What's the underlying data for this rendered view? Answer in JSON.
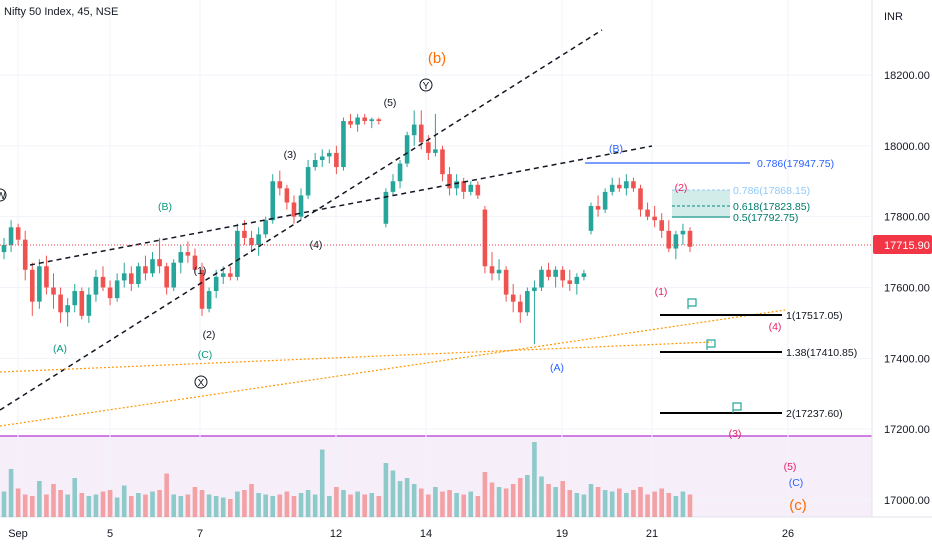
{
  "header": {
    "title": "Nifty 50 Index, 45, NSE",
    "currency": "INR"
  },
  "colors": {
    "up": "#26a69a",
    "down": "#ef5350",
    "vol_up": "#26a69a80",
    "vol_down": "#ef535080",
    "last_price_bg": "#f23645",
    "fib_blue": "#2962ff",
    "orange": "#ff6d00",
    "purple": "#9c27b0",
    "red_label": "#e91e63",
    "green_label": "#089981",
    "blue_label": "#2962ff"
  },
  "price_axis": {
    "ticks": [
      "18200.00",
      "18000.00",
      "17800.00",
      "17600.00",
      "17400.00",
      "17200.00",
      "17000.00"
    ],
    "last_price": "17715.90"
  },
  "time_axis": {
    "ticks": [
      "Sep",
      "5",
      "7",
      "12",
      "14",
      "19",
      "21",
      "26"
    ]
  },
  "fib_labels": {
    "b786": "0.786(17947.75)",
    "r786": "0.786(17868.15)",
    "r618": "0.618(17823.85)",
    "r5": "0.5(17792.75)",
    "t1": "1(17517.05)",
    "t138": "1.38(17410.85)",
    "t2": "2(17237.60)"
  },
  "wave_labels": {
    "b_big": "(b)",
    "c_big": "(c)",
    "y": "Y",
    "x": "X",
    "w5_top": "(5)",
    "w3": "(3)",
    "w4": "(4)",
    "w1": "(1)",
    "w2": "(2)",
    "wB": "(B)",
    "wA": "(A)",
    "wC": "(C)",
    "fB": "(B)",
    "fA": "(A)",
    "r2": "(2)",
    "r1": "(1)",
    "r3": "(3)",
    "r4": "(4)",
    "r5": "(5)",
    "rC": "(C)",
    "left_w": "W"
  },
  "chart_data": {
    "type": "candlestick",
    "title": "Nifty 50 Index, 45, NSE",
    "ylabel": "INR",
    "ylim": [
      16960,
      18250
    ],
    "x_tick_labels": [
      "Sep",
      "5",
      "7",
      "12",
      "14",
      "19",
      "21",
      "26"
    ],
    "last_price": 17715.9,
    "candles": [
      [
        17700,
        17740,
        17680,
        17720
      ],
      [
        17720,
        17790,
        17700,
        17770
      ],
      [
        17770,
        17780,
        17720,
        17735
      ],
      [
        17735,
        17760,
        17620,
        17650
      ],
      [
        17650,
        17670,
        17520,
        17560
      ],
      [
        17560,
        17680,
        17540,
        17660
      ],
      [
        17660,
        17690,
        17580,
        17600
      ],
      [
        17600,
        17640,
        17540,
        17580
      ],
      [
        17580,
        17600,
        17500,
        17530
      ],
      [
        17530,
        17570,
        17490,
        17550
      ],
      [
        17550,
        17610,
        17530,
        17590
      ],
      [
        17590,
        17600,
        17510,
        17520
      ],
      [
        17520,
        17600,
        17500,
        17580
      ],
      [
        17580,
        17650,
        17560,
        17630
      ],
      [
        17630,
        17660,
        17590,
        17600
      ],
      [
        17600,
        17620,
        17550,
        17570
      ],
      [
        17570,
        17640,
        17560,
        17620
      ],
      [
        17620,
        17670,
        17600,
        17640
      ],
      [
        17640,
        17660,
        17590,
        17610
      ],
      [
        17610,
        17670,
        17600,
        17660
      ],
      [
        17660,
        17690,
        17620,
        17640
      ],
      [
        17640,
        17700,
        17630,
        17680
      ],
      [
        17680,
        17740,
        17640,
        17660
      ],
      [
        17660,
        17670,
        17580,
        17600
      ],
      [
        17600,
        17680,
        17590,
        17670
      ],
      [
        17670,
        17720,
        17640,
        17700
      ],
      [
        17700,
        17730,
        17670,
        17690
      ],
      [
        17690,
        17710,
        17640,
        17650
      ],
      [
        17650,
        17670,
        17520,
        17540
      ],
      [
        17540,
        17600,
        17530,
        17590
      ],
      [
        17590,
        17650,
        17570,
        17630
      ],
      [
        17630,
        17660,
        17610,
        17640
      ],
      [
        17640,
        17660,
        17620,
        17630
      ],
      [
        17630,
        17780,
        17620,
        17760
      ],
      [
        17760,
        17790,
        17720,
        17740
      ],
      [
        17740,
        17760,
        17700,
        17720
      ],
      [
        17720,
        17770,
        17690,
        17750
      ],
      [
        17750,
        17800,
        17740,
        17790
      ],
      [
        17790,
        17920,
        17780,
        17900
      ],
      [
        17900,
        17930,
        17860,
        17880
      ],
      [
        17880,
        17890,
        17820,
        17840
      ],
      [
        17840,
        17860,
        17780,
        17800
      ],
      [
        17800,
        17880,
        17790,
        17860
      ],
      [
        17860,
        17960,
        17850,
        17940
      ],
      [
        17940,
        17980,
        17930,
        17960
      ],
      [
        17960,
        17990,
        17940,
        17970
      ],
      [
        17970,
        17990,
        17950,
        17980
      ],
      [
        17980,
        18000,
        17920,
        17940
      ],
      [
        17940,
        18080,
        17930,
        18070
      ],
      [
        18070,
        18090,
        18050,
        18060
      ],
      [
        18060,
        18090,
        18040,
        18080
      ],
      [
        18080,
        18090,
        18060,
        18070
      ],
      [
        18070,
        18080,
        18050,
        18075
      ],
      [
        18075,
        18080,
        18060,
        18070
      ],
      [
        17780,
        17880,
        17770,
        17870
      ],
      [
        17870,
        17920,
        17860,
        17900
      ],
      [
        17900,
        17960,
        17880,
        17950
      ],
      [
        17950,
        18040,
        17940,
        18030
      ],
      [
        18030,
        18100,
        18000,
        18060
      ],
      [
        18060,
        18100,
        17990,
        18010
      ],
      [
        18010,
        18030,
        17960,
        17980
      ],
      [
        17980,
        18090,
        17970,
        17990
      ],
      [
        17990,
        18000,
        17900,
        17920
      ],
      [
        17920,
        17940,
        17860,
        17880
      ],
      [
        17880,
        17920,
        17860,
        17900
      ],
      [
        17900,
        17910,
        17850,
        17870
      ],
      [
        17870,
        17900,
        17860,
        17890
      ],
      [
        17890,
        17900,
        17850,
        17860
      ],
      [
        17820,
        17830,
        17640,
        17660
      ],
      [
        17660,
        17700,
        17620,
        17640
      ],
      [
        17640,
        17680,
        17620,
        17650
      ],
      [
        17650,
        17660,
        17560,
        17580
      ],
      [
        17580,
        17610,
        17530,
        17560
      ],
      [
        17560,
        17580,
        17500,
        17530
      ],
      [
        17530,
        17600,
        17520,
        17590
      ],
      [
        17590,
        17620,
        17440,
        17600
      ],
      [
        17600,
        17660,
        17590,
        17650
      ],
      [
        17650,
        17670,
        17620,
        17630
      ],
      [
        17630,
        17660,
        17600,
        17650
      ],
      [
        17650,
        17660,
        17600,
        17620
      ],
      [
        17620,
        17650,
        17590,
        17610
      ],
      [
        17610,
        17640,
        17580,
        17630
      ],
      [
        17630,
        17650,
        17620,
        17640
      ],
      [
        17760,
        17840,
        17750,
        17830
      ],
      [
        17830,
        17860,
        17800,
        17820
      ],
      [
        17820,
        17880,
        17810,
        17870
      ],
      [
        17870,
        17910,
        17860,
        17890
      ],
      [
        17890,
        17910,
        17870,
        17880
      ],
      [
        17880,
        17920,
        17860,
        17900
      ],
      [
        17900,
        17910,
        17870,
        17880
      ],
      [
        17880,
        17890,
        17800,
        17820
      ],
      [
        17820,
        17840,
        17790,
        17800
      ],
      [
        17800,
        17830,
        17770,
        17790
      ],
      [
        17790,
        17810,
        17740,
        17760
      ],
      [
        17760,
        17790,
        17700,
        17710
      ],
      [
        17710,
        17760,
        17680,
        17750
      ],
      [
        17750,
        17780,
        17720,
        17760
      ],
      [
        17760,
        17770,
        17700,
        17715
      ]
    ],
    "volume": [
      34,
      64,
      38,
      30,
      28,
      48,
      30,
      44,
      36,
      30,
      52,
      32,
      28,
      30,
      34,
      36,
      26,
      42,
      28,
      32,
      30,
      34,
      36,
      58,
      30,
      28,
      30,
      40,
      36,
      30,
      28,
      26,
      24,
      34,
      36,
      44,
      32,
      30,
      28,
      30,
      34,
      28,
      32,
      36,
      30,
      90,
      28,
      40,
      36,
      30,
      34,
      30,
      32,
      28,
      72,
      62,
      48,
      52,
      44,
      38,
      30,
      40,
      34,
      36,
      32,
      30,
      34,
      28,
      60,
      46,
      40,
      38,
      44,
      52,
      56,
      100,
      54,
      44,
      40,
      48,
      36,
      32,
      30,
      44,
      40,
      36,
      34,
      38,
      32,
      36,
      40,
      30,
      34,
      38,
      32,
      28,
      34,
      30
    ],
    "fib_levels": [
      {
        "label": "0.786(17947.75)",
        "value": 17947.75
      },
      {
        "label": "0.786(17868.15)",
        "value": 17868.15
      },
      {
        "label": "0.618(17823.85)",
        "value": 17823.85
      },
      {
        "label": "0.5(17792.75)",
        "value": 17792.75
      },
      {
        "label": "1(17517.05)",
        "value": 17517.05
      },
      {
        "label": "1.38(17410.85)",
        "value": 17410.85
      },
      {
        "label": "2(17237.60)",
        "value": 17237.6
      }
    ]
  }
}
